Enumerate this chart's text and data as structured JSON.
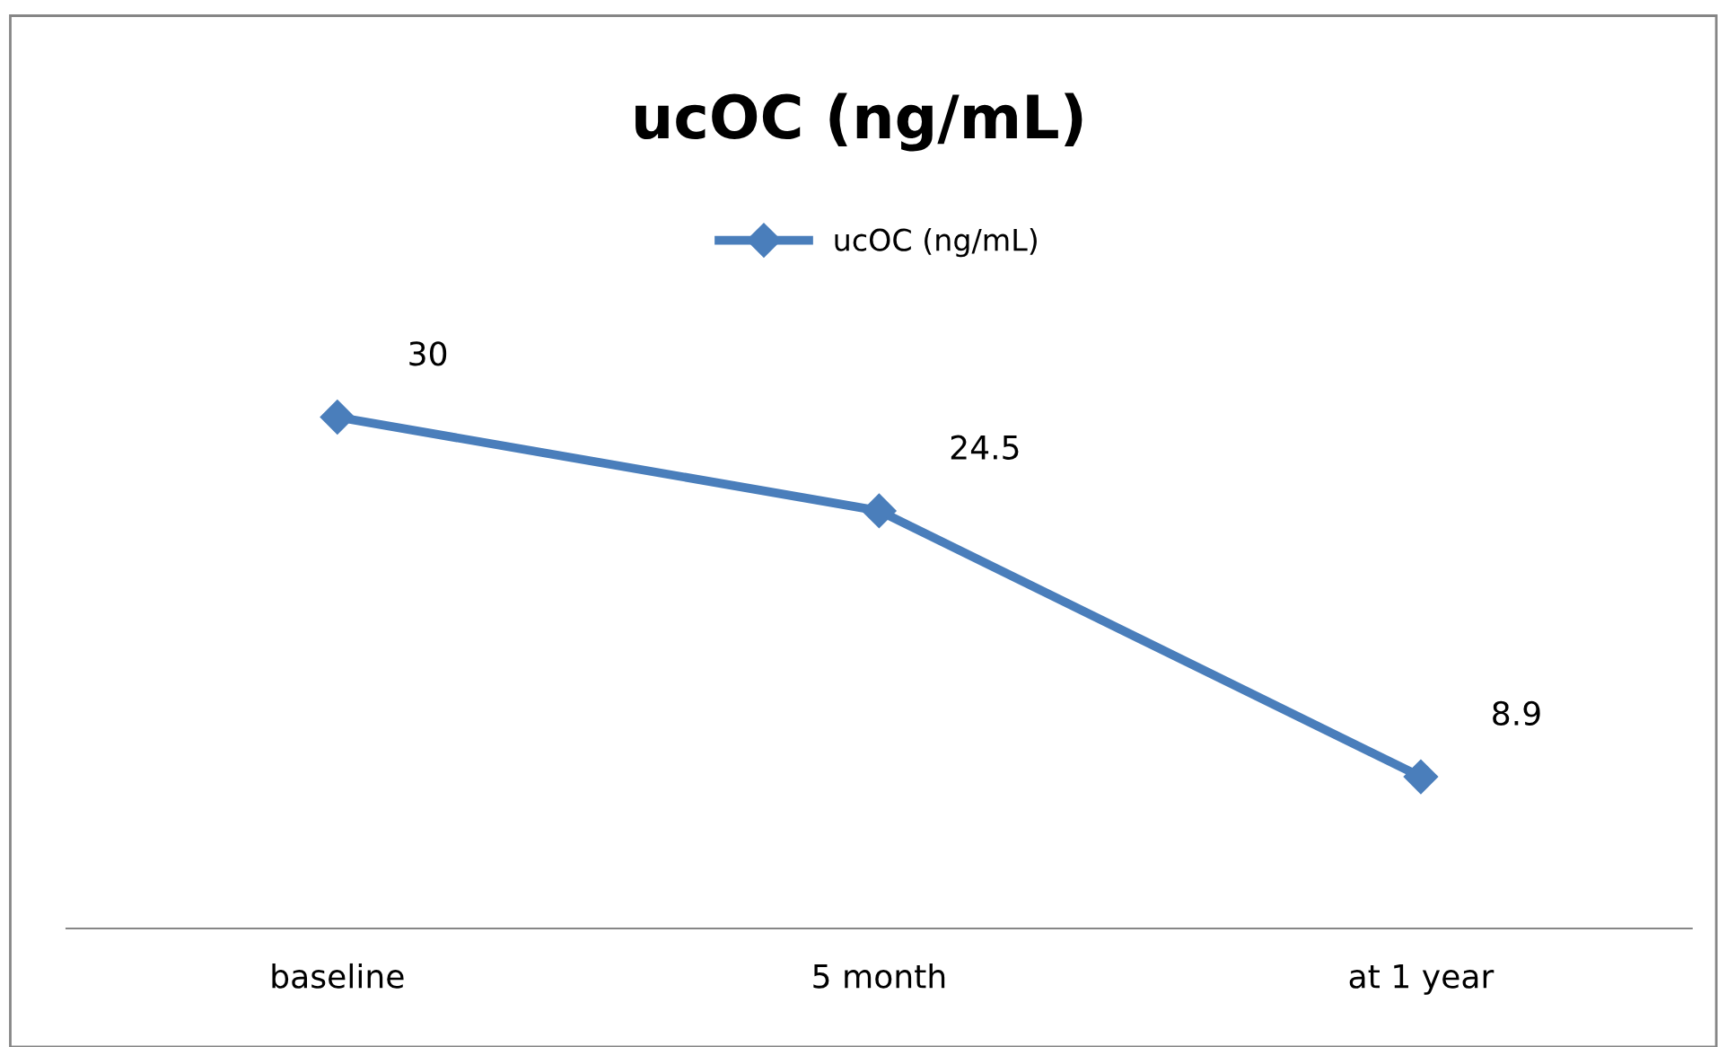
{
  "chart_data": {
    "type": "line",
    "title": "ucOC (ng/mL)",
    "categories": [
      "baseline",
      "5 month",
      "at 1 year"
    ],
    "series": [
      {
        "name": "ucOC (ng/mL)",
        "color": "#4a7ebb",
        "values": [
          30,
          24.5,
          8.9
        ]
      }
    ],
    "tick_labels": "x",
    "data_labels": true,
    "legend": "top",
    "marker": "diamond",
    "line_style": "solid",
    "grid": false
  }
}
